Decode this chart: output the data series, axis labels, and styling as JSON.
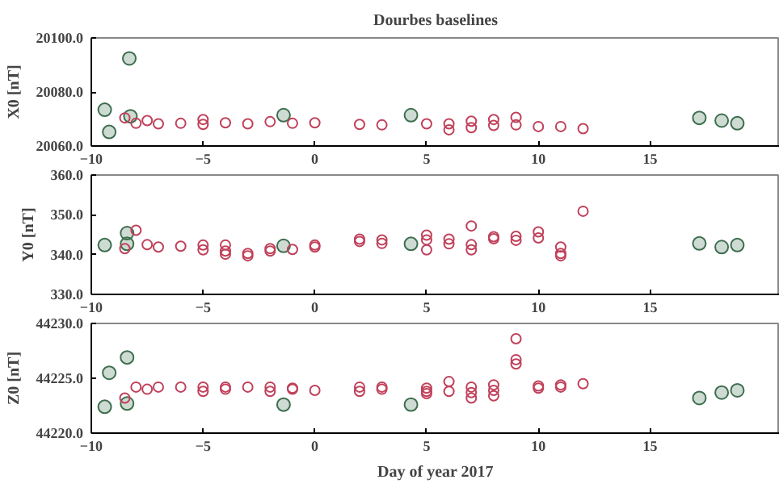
{
  "chart_data": [
    {
      "type": "scatter",
      "title": "Dourbes baselines",
      "ylabel": "X0 [nT]",
      "marker": "circle",
      "grid": false,
      "xlim": [
        -10,
        20.8
      ],
      "xticks": [
        -10,
        -5,
        0,
        5,
        10,
        15
      ],
      "ylim": [
        20060,
        20100
      ],
      "yticks": [
        {
          "value": 20060,
          "label": "20060.0"
        },
        {
          "value": 20080,
          "label": "20080.0"
        },
        {
          "value": 20100,
          "label": "20100.0"
        }
      ],
      "series": [
        {
          "color": "#3d6e4e",
          "x": [
            -9.4,
            -9.2,
            -8.3,
            -8.25,
            -1.4,
            4.3,
            17.2,
            18.2,
            18.9
          ],
          "values": [
            20073.4,
            20065.2,
            20092.4,
            20071,
            20071.4,
            20071.4,
            20070.4,
            20069.4,
            20068.4
          ]
        },
        {
          "color": "#c0405a",
          "x": [
            -8.5,
            -8,
            -7.5,
            -7,
            -6,
            -5,
            -5,
            -4,
            -3,
            -2,
            -1,
            0,
            2,
            3,
            5,
            6,
            6,
            7,
            7,
            8,
            8,
            9,
            9,
            10,
            11,
            12
          ],
          "values": [
            20070.4,
            20068.4,
            20069.4,
            20068.2,
            20068.4,
            20069.8,
            20068,
            20068.6,
            20068.2,
            20069,
            20068.4,
            20068.6,
            20068,
            20067.8,
            20068.2,
            20068.2,
            20066,
            20069.2,
            20066.8,
            20069.8,
            20067.6,
            20070.6,
            20067.8,
            20067.2,
            20067.2,
            20066.4
          ]
        }
      ]
    },
    {
      "type": "scatter",
      "ylabel": "Y0 [nT]",
      "marker": "circle",
      "grid": false,
      "xlim": [
        -10,
        20.8
      ],
      "xticks": [
        -10,
        -5,
        0,
        5,
        10,
        15
      ],
      "ylim": [
        330,
        360
      ],
      "yticks": [
        {
          "value": 330,
          "label": "330.0"
        },
        {
          "value": 340,
          "label": "340.0"
        },
        {
          "value": 350,
          "label": "350.0"
        },
        {
          "value": 360,
          "label": "360.0"
        }
      ],
      "series": [
        {
          "color": "#3d6e4e",
          "x": [
            -9.4,
            -8.4,
            -8.4,
            -1.4,
            4.3,
            17.2,
            18.2,
            18.9
          ],
          "values": [
            342.4,
            345.4,
            342.7,
            342.2,
            342.7,
            342.8,
            341.9,
            342.4
          ]
        },
        {
          "color": "#c0405a",
          "x": [
            -8.5,
            -8,
            -7.5,
            -7,
            -6,
            -5,
            -5,
            -4,
            -4,
            -4,
            -3,
            -3,
            -2,
            -2,
            -1,
            0,
            0,
            2,
            2,
            3,
            3,
            5,
            5,
            5,
            6,
            6,
            7,
            7,
            7,
            8,
            8,
            9,
            9,
            10,
            10,
            11,
            11,
            11,
            12
          ],
          "values": [
            341.5,
            346.1,
            342.5,
            341.9,
            342.1,
            342.4,
            341.2,
            342.4,
            340.9,
            340.1,
            340.3,
            339.7,
            341.5,
            340.9,
            341.3,
            342.4,
            341.9,
            343.9,
            343.3,
            343.7,
            342.8,
            344.9,
            343.7,
            341.2,
            343.9,
            342.7,
            347.2,
            342.5,
            341.2,
            344.5,
            344,
            344.6,
            343.6,
            345.7,
            344.2,
            341.9,
            340.3,
            339.7,
            350.9
          ]
        }
      ]
    },
    {
      "type": "scatter",
      "ylabel": "Z0 [nT]",
      "xlabel": "Day of year 2017",
      "marker": "circle",
      "grid": false,
      "xlim": [
        -10,
        20.8
      ],
      "xticks": [
        -10,
        -5,
        0,
        5,
        10,
        15
      ],
      "ylim": [
        44220,
        44230
      ],
      "yticks": [
        {
          "value": 44220,
          "label": "44220.0"
        },
        {
          "value": 44225,
          "label": "44225.0"
        },
        {
          "value": 44230,
          "label": "44230.0"
        }
      ],
      "series": [
        {
          "color": "#3d6e4e",
          "x": [
            -9.4,
            -9.2,
            -8.4,
            -8.4,
            -1.4,
            4.3,
            17.2,
            18.2,
            18.9
          ],
          "values": [
            44222.4,
            44225.5,
            44226.9,
            44222.7,
            44222.6,
            44222.6,
            44223.2,
            44223.7,
            44223.9
          ]
        },
        {
          "color": "#c0405a",
          "x": [
            -8.5,
            -8,
            -7.5,
            -7,
            -6,
            -5,
            -5,
            -4,
            -4,
            -3,
            -2,
            -2,
            -1,
            -1,
            0,
            2,
            2,
            3,
            3,
            5,
            5,
            5,
            6,
            6,
            7,
            7,
            7,
            8,
            8,
            8,
            9,
            9,
            9,
            10,
            10,
            11,
            11,
            12
          ],
          "values": [
            44223.2,
            44224.2,
            44224,
            44224.2,
            44224.2,
            44224.2,
            44223.8,
            44224.2,
            44224,
            44224.2,
            44224.2,
            44223.8,
            44224.1,
            44224,
            44223.9,
            44224.2,
            44223.8,
            44224.2,
            44224,
            44224.1,
            44223.8,
            44223.6,
            44224.7,
            44223.8,
            44224.2,
            44223.7,
            44223.2,
            44224.4,
            44223.9,
            44223.4,
            44228.6,
            44226.7,
            44226.3,
            44224.3,
            44224.1,
            44224.4,
            44224.2,
            44224.5
          ]
        }
      ]
    }
  ]
}
